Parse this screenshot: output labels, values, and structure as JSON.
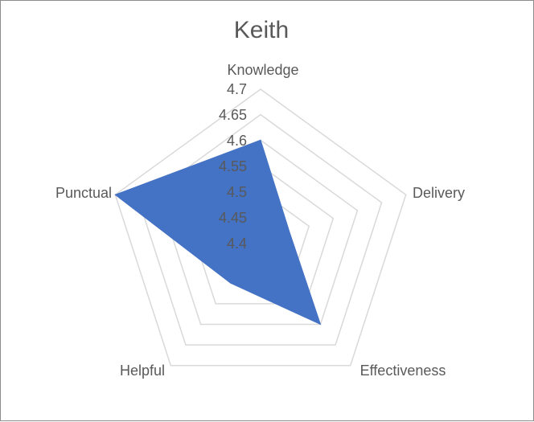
{
  "chart_data": {
    "type": "radar",
    "title": "Keith",
    "categories": [
      "Knowledge",
      "Delivery",
      "Effectiveness",
      "Helpful",
      "Punctual"
    ],
    "series": [
      {
        "values": [
          4.6,
          4.46,
          4.6,
          4.5,
          4.7
        ],
        "color": "#4472c4"
      }
    ],
    "rlim": [
      4.4,
      4.7
    ],
    "ticks": [
      "4.7",
      "4.65",
      "4.6",
      "4.55",
      "4.5",
      "4.45",
      "4.4"
    ],
    "grid": true,
    "legend": "none"
  }
}
